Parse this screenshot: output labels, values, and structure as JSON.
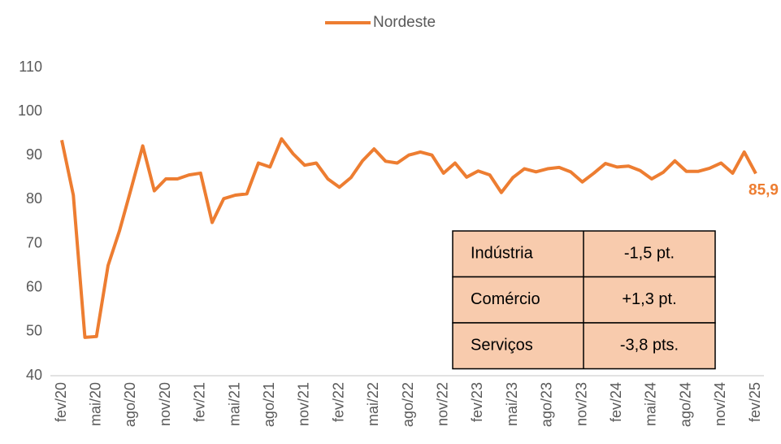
{
  "chart_data": {
    "type": "line",
    "categories": [
      "fev/20",
      null,
      null,
      "mai/20",
      null,
      null,
      "ago/20",
      null,
      null,
      "nov/20",
      null,
      null,
      "fev/21",
      null,
      null,
      "mai/21",
      null,
      null,
      "ago/21",
      null,
      null,
      "nov/21",
      null,
      null,
      "fev/22",
      null,
      null,
      "mai/22",
      null,
      null,
      "ago/22",
      null,
      null,
      "nov/22",
      null,
      null,
      "fev/23",
      null,
      null,
      "mai/23",
      null,
      null,
      "ago/23",
      null,
      null,
      "nov/23",
      null,
      null,
      "fev/24",
      null,
      null,
      "mai/24",
      null,
      null,
      "ago/24",
      null,
      null,
      "nov/24",
      null,
      null,
      "fev/25"
    ],
    "series": [
      {
        "name": "Nordeste",
        "color": "#ED7D31",
        "values": [
          93.5,
          81,
          48.7,
          48.9,
          65,
          73,
          82.5,
          92.2,
          82,
          84.7,
          84.7,
          85.6,
          86,
          74.8,
          80.2,
          81,
          81.3,
          88.3,
          87.4,
          93.8,
          90.4,
          87.8,
          88.3,
          84.7,
          82.8,
          85,
          88.8,
          91.5,
          88.7,
          88.3,
          90.1,
          90.8,
          90.1,
          86,
          88.3,
          85.1,
          86.5,
          85.6,
          81.6,
          85,
          87,
          86.3,
          87,
          87.3,
          86.3,
          84,
          86,
          88.2,
          87.4,
          87.6,
          86.6,
          84.7,
          86.2,
          88.8,
          86.4,
          86.4,
          87.1,
          88.3,
          86,
          90.8,
          85.9
        ],
        "value_labels": [
          null,
          null,
          null,
          null,
          null,
          null,
          null,
          null,
          null,
          null,
          null,
          null,
          null,
          null,
          null,
          null,
          null,
          null,
          null,
          null,
          null,
          null,
          null,
          null,
          null,
          null,
          null,
          null,
          null,
          null,
          null,
          null,
          null,
          null,
          null,
          null,
          null,
          null,
          null,
          null,
          null,
          null,
          null,
          null,
          null,
          null,
          null,
          null,
          null,
          null,
          null,
          null,
          null,
          null,
          null,
          null,
          null,
          null,
          null,
          null,
          "85,9"
        ]
      }
    ],
    "ylim": [
      40,
      110
    ],
    "yticks": [
      40,
      50,
      60,
      70,
      80,
      90,
      100,
      110
    ],
    "grid": false,
    "legend": "top"
  },
  "table": {
    "rows": [
      [
        "Indústria",
        "-1,5 pt."
      ],
      [
        "Comércio",
        "+1,3 pt."
      ],
      [
        "Serviços",
        "-3,8 pts."
      ]
    ]
  }
}
